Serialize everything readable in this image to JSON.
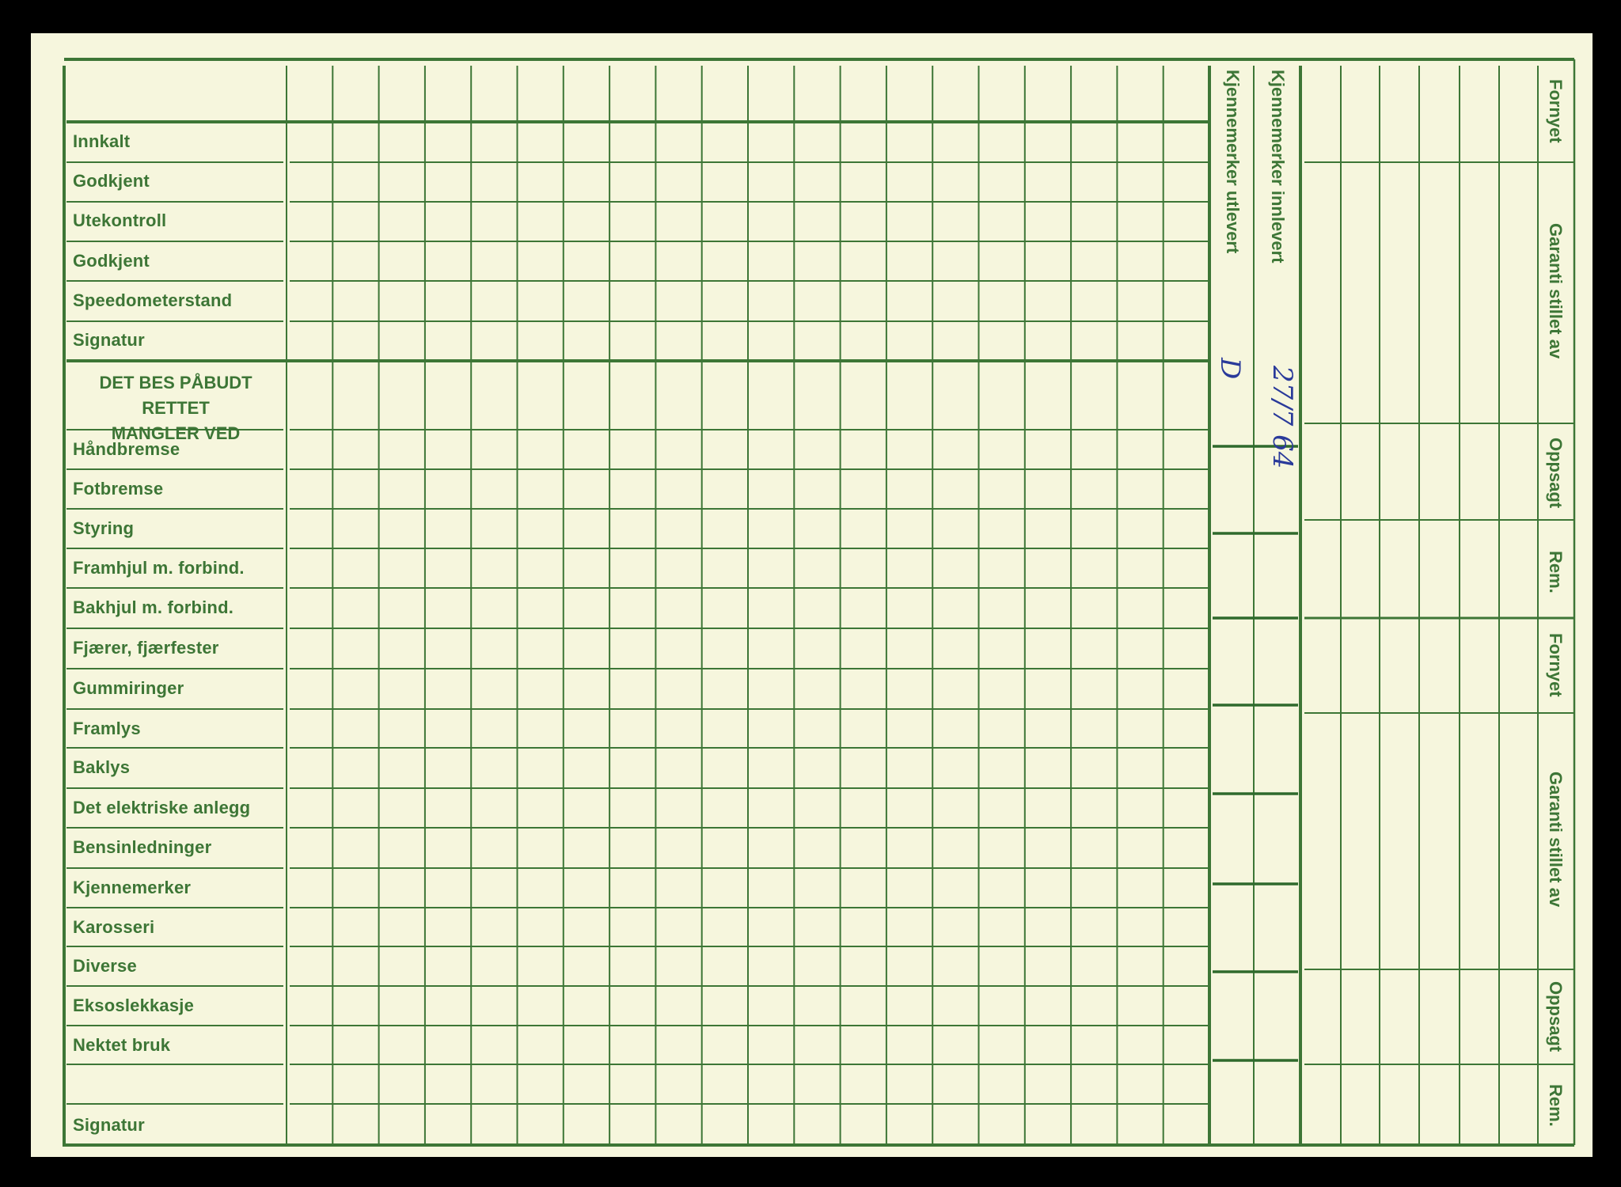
{
  "form": {
    "top_rows": [
      "Innkalt",
      "Godkjent",
      "Utekontroll",
      "Godkjent",
      "Speedometerstand",
      "Signatur"
    ],
    "section_header_line1": "DET BES PÅBUDT RETTET",
    "section_header_line2": "MANGLER VED",
    "defect_rows": [
      "Håndbremse",
      "Fotbremse",
      "Styring",
      "Framhjul m. forbind.",
      "Bakhjul m. forbind.",
      "Fjærer, fjærfester",
      "Gummiringer",
      "Framlys",
      "Baklys",
      "Det elektriske anlegg",
      "Bensinledninger",
      "Kjennemerker",
      "Karosseri",
      "Diverse",
      "Eksoslekkasje",
      "Nektet bruk",
      "",
      "Signatur"
    ],
    "plates_delivered_out": "Kjennemerker utlevert",
    "plates_handed_in": "Kjennemerker innlevert",
    "right_labels": [
      "Fornyet",
      "Garanti stillet av",
      "Oppsagt",
      "Rem.",
      "Fornyet",
      "Garanti stillet av",
      "Oppsagt",
      "Rem."
    ]
  },
  "handwriting": {
    "utlevert_mark": "D",
    "innlevert_date": "27/7 64"
  },
  "colors": {
    "ink": "#3d7636",
    "paper": "#f6f6dd",
    "pen": "#2a3a9a"
  }
}
